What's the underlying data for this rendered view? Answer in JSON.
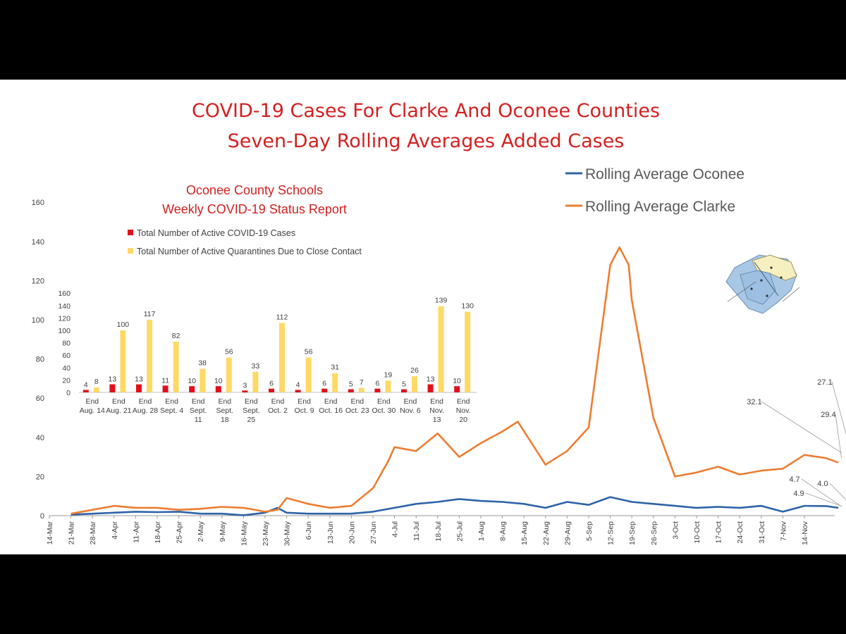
{
  "chart_data": [
    {
      "type": "line",
      "title": "COVID-19 Cases For Clarke And Oconee Counties",
      "subtitle": "Seven-Day Rolling Averages Added Cases",
      "ylim": [
        0,
        160
      ],
      "yticks": [
        0,
        20,
        40,
        60,
        80,
        100,
        120,
        140,
        160
      ],
      "x_tick_labels": [
        "14-Mar",
        "21-Mar",
        "28-Mar",
        "4-Apr",
        "11-Apr",
        "18-Apr",
        "25-Apr",
        "2-May",
        "9-May",
        "16-May",
        "23-May",
        "30-May",
        "6-Jun",
        "13-Jun",
        "20-Jun",
        "27-Jun",
        "4-Jul",
        "11-Jul",
        "18-Jul",
        "25-Jul",
        "1-Aug",
        "8-Aug",
        "15-Aug",
        "22-Aug",
        "29-Aug",
        "5-Sep",
        "12-Sep",
        "19-Sep",
        "26-Sep",
        "3-Oct",
        "10-Oct",
        "17-Oct",
        "24-Oct",
        "31-Oct",
        "7-Nov",
        "14-Nov"
      ],
      "legend_position": "top-right",
      "series": [
        {
          "name": "Rolling Average Oconee",
          "color": "#2E63A8",
          "points": [
            [
              7,
              0.5
            ],
            [
              14,
              1.0
            ],
            [
              21,
              1.5
            ],
            [
              28,
              2.0
            ],
            [
              35,
              1.8
            ],
            [
              42,
              2.0
            ],
            [
              49,
              1.0
            ],
            [
              56,
              1.0
            ],
            [
              63,
              0.2
            ],
            [
              70,
              1.5
            ],
            [
              74,
              4.0
            ],
            [
              77,
              1.5
            ],
            [
              84,
              1.0
            ],
            [
              91,
              1.0
            ],
            [
              98,
              1.0
            ],
            [
              105,
              2.0
            ],
            [
              112,
              4.0
            ],
            [
              119,
              6.0
            ],
            [
              126,
              7.0
            ],
            [
              133,
              8.5
            ],
            [
              140,
              7.5
            ],
            [
              147,
              7.0
            ],
            [
              154,
              6.0
            ],
            [
              161,
              4.0
            ],
            [
              168,
              7.0
            ],
            [
              175,
              5.5
            ],
            [
              182,
              9.5
            ],
            [
              189,
              7.0
            ],
            [
              196,
              6.0
            ],
            [
              203,
              5.0
            ],
            [
              210,
              4.0
            ],
            [
              217,
              4.5
            ],
            [
              224,
              4.0
            ],
            [
              231,
              5.0
            ],
            [
              238,
              2.0
            ],
            [
              245,
              5.0
            ],
            [
              252,
              4.9
            ],
            [
              256,
              4.0
            ]
          ]
        },
        {
          "name": "Rolling Average Clarke",
          "color": "#ED7D31",
          "points": [
            [
              7,
              1.0
            ],
            [
              14,
              3.0
            ],
            [
              21,
              5.0
            ],
            [
              28,
              4.0
            ],
            [
              35,
              4.0
            ],
            [
              42,
              3.0
            ],
            [
              49,
              3.5
            ],
            [
              56,
              4.5
            ],
            [
              63,
              4.0
            ],
            [
              70,
              2.0
            ],
            [
              74,
              3.0
            ],
            [
              77,
              9.0
            ],
            [
              84,
              6.0
            ],
            [
              91,
              4.0
            ],
            [
              98,
              5.0
            ],
            [
              105,
              14.0
            ],
            [
              110,
              28.0
            ],
            [
              112,
              35.0
            ],
            [
              119,
              33.0
            ],
            [
              126,
              42.0
            ],
            [
              133,
              30.0
            ],
            [
              140,
              37.0
            ],
            [
              147,
              43.0
            ],
            [
              152,
              48.0
            ],
            [
              161,
              26.0
            ],
            [
              168,
              33.0
            ],
            [
              175,
              45.0
            ],
            [
              182,
              128.0
            ],
            [
              185,
              137.0
            ],
            [
              188,
              128.0
            ],
            [
              189,
              110.0
            ],
            [
              196,
              50.0
            ],
            [
              203,
              20.0
            ],
            [
              210,
              22.0
            ],
            [
              217,
              25.0
            ],
            [
              224,
              21.0
            ],
            [
              231,
              23.0
            ],
            [
              238,
              24.0
            ],
            [
              245,
              31.0
            ],
            [
              252,
              29.4
            ],
            [
              256,
              27.1
            ]
          ]
        }
      ],
      "annotations": [
        {
          "text": "32.1",
          "x": 252,
          "y": 32.1
        },
        {
          "text": "29.4",
          "x": 252,
          "y": 29.4
        },
        {
          "text": "27.1",
          "x": 256,
          "y": 27.1
        },
        {
          "text": "4.7",
          "x": 252,
          "y": 4.7
        },
        {
          "text": "4.9",
          "x": 252,
          "y": 4.9
        },
        {
          "text": "4.0",
          "x": 256,
          "y": 4.0
        }
      ]
    },
    {
      "type": "bar",
      "title": "Oconee County Schools",
      "subtitle": "Weekly COVID-19 Status Report",
      "categories": [
        "End Aug. 14",
        "End Aug. 21",
        "End Aug. 28",
        "End Sept. 4",
        "End Sept. 11",
        "End Sept. 18",
        "End Sept. 25",
        "End Oct. 2",
        "End Oct. 9",
        "End Oct. 16",
        "End Oct. 23",
        "End Oct. 30",
        "End Nov. 6",
        "End Nov. 13",
        "End Nov. 20"
      ],
      "category_lines": [
        [
          "End",
          "Aug. 14"
        ],
        [
          "End",
          "Aug. 21"
        ],
        [
          "End",
          "Aug. 28"
        ],
        [
          "End",
          "Sept. 4"
        ],
        [
          "End",
          "Sept.",
          "11"
        ],
        [
          "End",
          "Sept.",
          "18"
        ],
        [
          "End",
          "Sept.",
          "25"
        ],
        [
          "End",
          "Oct. 2"
        ],
        [
          "End",
          "Oct. 9"
        ],
        [
          "End",
          "Oct. 16"
        ],
        [
          "End",
          "Oct. 23"
        ],
        [
          "End",
          "Oct. 30"
        ],
        [
          "End",
          "Nov. 6"
        ],
        [
          "End",
          "Nov.",
          "13"
        ],
        [
          "End",
          "Nov.",
          "20"
        ]
      ],
      "ylim": [
        0,
        160
      ],
      "yticks": [
        0,
        20,
        40,
        60,
        80,
        100,
        120,
        140,
        160
      ],
      "legend_position": "top-left",
      "series": [
        {
          "name": "Total Number of Active COVID-19 Cases",
          "color": "#E0101A",
          "values": [
            4,
            13,
            13,
            11,
            10,
            10,
            3,
            6,
            4,
            6,
            5,
            6,
            5,
            13,
            10
          ]
        },
        {
          "name": "Total Number of Active Quarantines Due to Close Contact",
          "color": "#FFD966",
          "values": [
            8,
            100,
            117,
            82,
            38,
            56,
            33,
            112,
            56,
            31,
            7,
            19,
            26,
            139,
            130
          ]
        }
      ]
    }
  ]
}
